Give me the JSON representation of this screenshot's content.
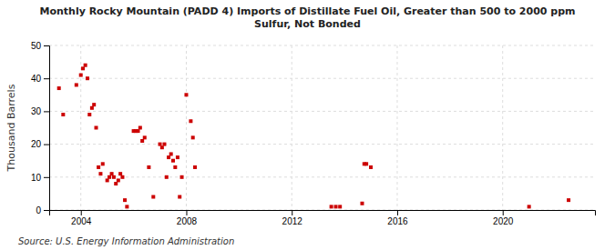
{
  "chart_data": {
    "type": "scatter",
    "title": "Monthly Rocky Mountain (PADD 4) Imports of Distillate Fuel Oil, Greater than 500 to 2000 ppm\nSulfur, Not Bonded",
    "ylabel": "Thousand Barrels",
    "annotations": [
      "Source: U.S. Energy Information Administration"
    ],
    "color": "#cc0000",
    "marker": "square",
    "grid": true,
    "xlim": [
      2002.8,
      2023.5
    ],
    "ylim": [
      0,
      50
    ],
    "xticks": [
      2004,
      2008,
      2012,
      2016,
      2020
    ],
    "yticks": [
      0,
      10,
      20,
      30,
      40,
      50
    ],
    "x": [
      2003.17,
      2003.33,
      2003.83,
      2004.0,
      2004.08,
      2004.17,
      2004.25,
      2004.33,
      2004.42,
      2004.5,
      2004.58,
      2004.67,
      2004.75,
      2004.83,
      2005.0,
      2005.08,
      2005.17,
      2005.25,
      2005.33,
      2005.42,
      2005.5,
      2005.58,
      2005.67,
      2005.75,
      2006.0,
      2006.08,
      2006.17,
      2006.25,
      2006.33,
      2006.42,
      2006.58,
      2006.75,
      2007.0,
      2007.08,
      2007.17,
      2007.25,
      2007.33,
      2007.42,
      2007.5,
      2007.58,
      2007.67,
      2007.75,
      2007.83,
      2008.0,
      2008.17,
      2008.25,
      2008.33,
      2013.5,
      2013.67,
      2013.83,
      2014.67,
      2014.75,
      2014.83,
      2015.0,
      2021.0,
      2022.5
    ],
    "values": [
      37,
      29,
      38,
      41,
      43,
      44,
      40,
      29,
      31,
      32,
      25,
      13,
      11,
      14,
      9,
      10,
      11,
      10,
      8,
      9,
      11,
      10,
      3,
      1,
      24,
      24,
      24,
      25,
      21,
      22,
      13,
      4,
      20,
      19,
      20,
      10,
      16,
      17,
      15,
      13,
      16,
      4,
      10,
      35,
      27,
      22,
      13,
      1,
      1,
      1,
      2,
      14,
      14,
      13,
      1,
      3
    ]
  }
}
